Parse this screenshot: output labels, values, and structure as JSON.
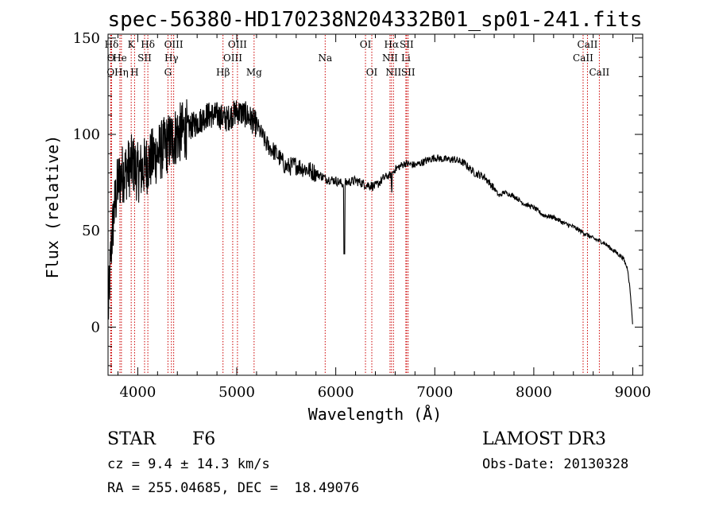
{
  "chart_data": {
    "type": "line",
    "title": "spec-56380-HD170238N204332B01_sp01-241.fits",
    "xlabel": "Wavelength (Å)",
    "ylabel": "Flux (relative)",
    "xlim": [
      3700,
      9100
    ],
    "ylim": [
      -25,
      152
    ],
    "xticks": [
      4000,
      5000,
      6000,
      7000,
      8000,
      9000
    ],
    "xtick_labels": [
      "4000",
      "5000",
      "6000",
      "7000",
      "8000",
      "9000"
    ],
    "yticks": [
      0,
      50,
      100,
      150
    ],
    "ytick_labels": [
      "0",
      "50",
      "100",
      "150"
    ],
    "series": [
      {
        "name": "flux",
        "x": [
          3700,
          3730,
          3760,
          3800,
          3850,
          3900,
          3950,
          4000,
          4050,
          4100,
          4150,
          4200,
          4300,
          4400,
          4500,
          4600,
          4700,
          4800,
          4900,
          5000,
          5100,
          5200,
          5300,
          5400,
          5500,
          5600,
          5700,
          5800,
          5900,
          6000,
          6080,
          6100,
          6200,
          6300,
          6400,
          6500,
          6560,
          6600,
          6700,
          6800,
          6900,
          7000,
          7100,
          7200,
          7300,
          7400,
          7500,
          7600,
          7650,
          7700,
          7800,
          7900,
          8000,
          8100,
          8200,
          8300,
          8400,
          8500,
          8600,
          8700,
          8800,
          8900,
          8950,
          8980,
          9000
        ],
        "y": [
          5,
          40,
          60,
          75,
          80,
          82,
          85,
          80,
          82,
          85,
          88,
          90,
          95,
          100,
          103,
          106,
          110,
          110,
          108,
          112,
          110,
          105,
          95,
          90,
          83,
          84,
          82,
          80,
          77,
          76,
          74,
          75,
          76,
          74,
          73,
          78,
          79,
          82,
          85,
          84,
          86,
          88,
          87,
          87,
          85,
          80,
          78,
          72,
          68,
          70,
          68,
          64,
          62,
          58,
          57,
          54,
          52,
          49,
          46,
          44,
          40,
          36,
          30,
          15,
          0
        ]
      }
    ],
    "spectral_lines": [
      {
        "label": "Hδ",
        "wavelength": 3736,
        "row": 1
      },
      {
        "label": "O",
        "wavelength": 3728,
        "row": 2
      },
      {
        "label": "O",
        "wavelength": 3726,
        "row": 3
      },
      {
        "label": "He",
        "wavelength": 3820,
        "row": 2
      },
      {
        "label": "Hη",
        "wavelength": 3835,
        "row": 3
      },
      {
        "label": "K",
        "wavelength": 3934,
        "row": 1
      },
      {
        "label": "SII",
        "wavelength": 4069,
        "row": 2
      },
      {
        "label": "H",
        "wavelength": 3968,
        "row": 3
      },
      {
        "label": "Hδ",
        "wavelength": 4102,
        "row": 1
      },
      {
        "label": "OIII",
        "wavelength": 4363,
        "row": 1
      },
      {
        "label": "Hγ",
        "wavelength": 4340,
        "row": 2
      },
      {
        "label": "G",
        "wavelength": 4305,
        "row": 3
      },
      {
        "label": "OIII",
        "wavelength": 5007,
        "row": 1
      },
      {
        "label": "OIII",
        "wavelength": 4959,
        "row": 2
      },
      {
        "label": "Hβ",
        "wavelength": 4861,
        "row": 3
      },
      {
        "label": "Mg",
        "wavelength": 5175,
        "row": 3
      },
      {
        "label": "Na",
        "wavelength": 5893,
        "row": 2
      },
      {
        "label": "OI",
        "wavelength": 6300,
        "row": 1
      },
      {
        "label": "OI",
        "wavelength": 6364,
        "row": 3
      },
      {
        "label": "Hα",
        "wavelength": 6563,
        "row": 1
      },
      {
        "label": "SII",
        "wavelength": 6716,
        "row": 1
      },
      {
        "label": "NII",
        "wavelength": 6548,
        "row": 2
      },
      {
        "label": "Li",
        "wavelength": 6708,
        "row": 2
      },
      {
        "label": "NII",
        "wavelength": 6583,
        "row": 3
      },
      {
        "label": "SII",
        "wavelength": 6731,
        "row": 3
      },
      {
        "label": "CaII",
        "wavelength": 8542,
        "row": 1
      },
      {
        "label": "CaII",
        "wavelength": 8498,
        "row": 2
      },
      {
        "label": "CaII",
        "wavelength": 8662,
        "row": 3
      }
    ]
  },
  "info": {
    "object_class": "STAR",
    "subclass": "F6",
    "survey": "LAMOST DR3",
    "cz": "cz = 9.4 ± 14.3 km/s",
    "obs_date": "Obs-Date: 20130328",
    "coords": "RA = 255.04685, DEC =  18.49076"
  },
  "colors": {
    "line_marker": "#cc0000",
    "spectrum": "#000000"
  }
}
